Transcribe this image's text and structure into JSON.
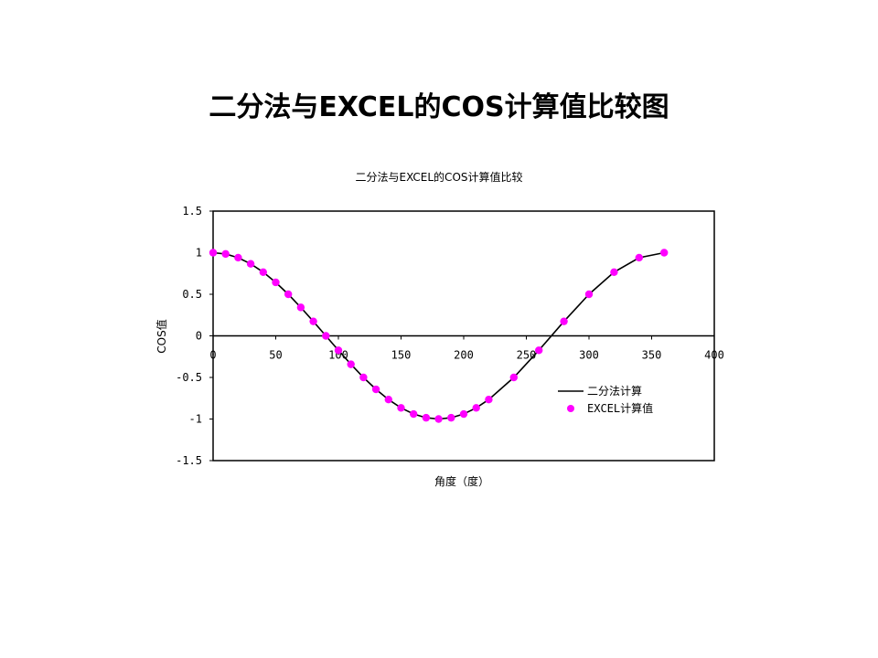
{
  "slide": {
    "title": "二分法与EXCEL的COS计算值比较图"
  },
  "chart_data": {
    "type": "line+scatter",
    "title": "二分法与EXCEL的COS计算值比较",
    "xlabel": "角度（度）",
    "ylabel": "COS值",
    "xlim": [
      0,
      400
    ],
    "ylim": [
      -1.5,
      1.5
    ],
    "xticks": [
      "0",
      "50",
      "100",
      "150",
      "200",
      "250",
      "300",
      "350",
      "400"
    ],
    "yticks": [
      "1.5",
      "1",
      "0.5",
      "0",
      "-0.5",
      "-1",
      "-1.5"
    ],
    "xtick_values": [
      0,
      50,
      100,
      150,
      200,
      250,
      300,
      350,
      400
    ],
    "ytick_values": [
      1.5,
      1,
      0.5,
      0,
      -0.5,
      -1,
      -1.5
    ],
    "grid": false,
    "legend_position": "right",
    "series": [
      {
        "name": "二分法计算",
        "kind": "line",
        "color": "#000000",
        "x": [
          0,
          10,
          20,
          30,
          40,
          50,
          60,
          70,
          80,
          90,
          100,
          110,
          120,
          130,
          140,
          150,
          160,
          170,
          180,
          190,
          200,
          210,
          220,
          240,
          260,
          280,
          300,
          320,
          340,
          360
        ],
        "y": [
          1,
          0.985,
          0.94,
          0.866,
          0.766,
          0.643,
          0.5,
          0.342,
          0.174,
          0,
          -0.174,
          -0.342,
          -0.5,
          -0.643,
          -0.766,
          -0.866,
          -0.94,
          -0.985,
          -1,
          -0.985,
          -0.94,
          -0.866,
          -0.766,
          -0.5,
          -0.174,
          0.174,
          0.5,
          0.766,
          0.94,
          1
        ]
      },
      {
        "name": "EXCEL计算值",
        "kind": "scatter",
        "color": "#ff00ff",
        "x": [
          0,
          10,
          20,
          30,
          40,
          50,
          60,
          70,
          80,
          90,
          100,
          110,
          120,
          130,
          140,
          150,
          160,
          170,
          180,
          190,
          200,
          210,
          220,
          240,
          260,
          280,
          300,
          320,
          340,
          360
        ],
        "y": [
          1,
          0.985,
          0.94,
          0.866,
          0.766,
          0.643,
          0.5,
          0.342,
          0.174,
          0,
          -0.174,
          -0.342,
          -0.5,
          -0.643,
          -0.766,
          -0.866,
          -0.94,
          -0.985,
          -1,
          -0.985,
          -0.94,
          -0.866,
          -0.766,
          -0.5,
          -0.174,
          0.174,
          0.5,
          0.766,
          0.94,
          1
        ]
      }
    ]
  }
}
